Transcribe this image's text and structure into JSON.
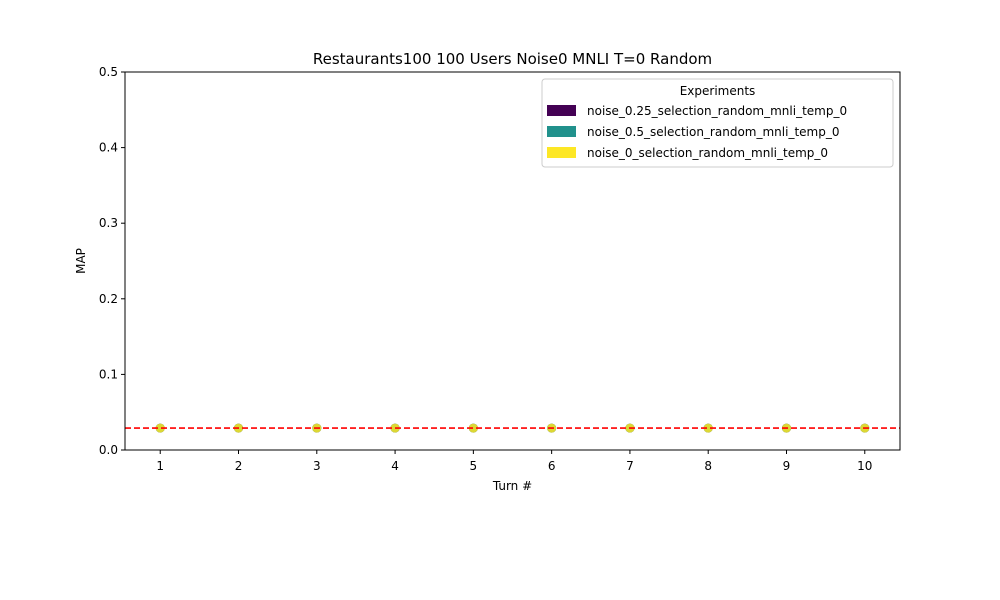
{
  "chart_data": {
    "type": "line",
    "title": "Restaurants100 100 Users Noise0 MNLI T=0 Random",
    "xlabel": "Turn #",
    "ylabel": "MAP",
    "x": [
      1,
      2,
      3,
      4,
      5,
      6,
      7,
      8,
      9,
      10
    ],
    "xlim": [
      0.55,
      10.45
    ],
    "ylim": [
      0,
      0.5
    ],
    "xticks": [
      "1",
      "2",
      "3",
      "4",
      "5",
      "6",
      "7",
      "8",
      "9",
      "10"
    ],
    "yticks": [
      "0.0",
      "0.1",
      "0.2",
      "0.3",
      "0.4",
      "0.5"
    ],
    "reference_line": {
      "y": 0.029,
      "color": "#ff0000",
      "style": "dashed"
    },
    "legend": {
      "title": "Experiments",
      "placement": "top-right"
    },
    "series": [
      {
        "name": "noise_0.25_selection_random_mnli_temp_0",
        "color": "#440154",
        "values": [
          0.029,
          0.029,
          0.029,
          0.029,
          0.029,
          0.029,
          0.029,
          0.029,
          0.029,
          0.029
        ]
      },
      {
        "name": "noise_0.5_selection_random_mnli_temp_0",
        "color": "#21918c",
        "values": [
          0.029,
          0.029,
          0.029,
          0.029,
          0.029,
          0.029,
          0.029,
          0.029,
          0.029,
          0.029
        ]
      },
      {
        "name": "noise_0_selection_random_mnli_temp_0",
        "color": "#fde725",
        "values": [
          0.029,
          0.029,
          0.029,
          0.029,
          0.029,
          0.029,
          0.029,
          0.029,
          0.029,
          0.029
        ]
      }
    ],
    "grid": false
  }
}
